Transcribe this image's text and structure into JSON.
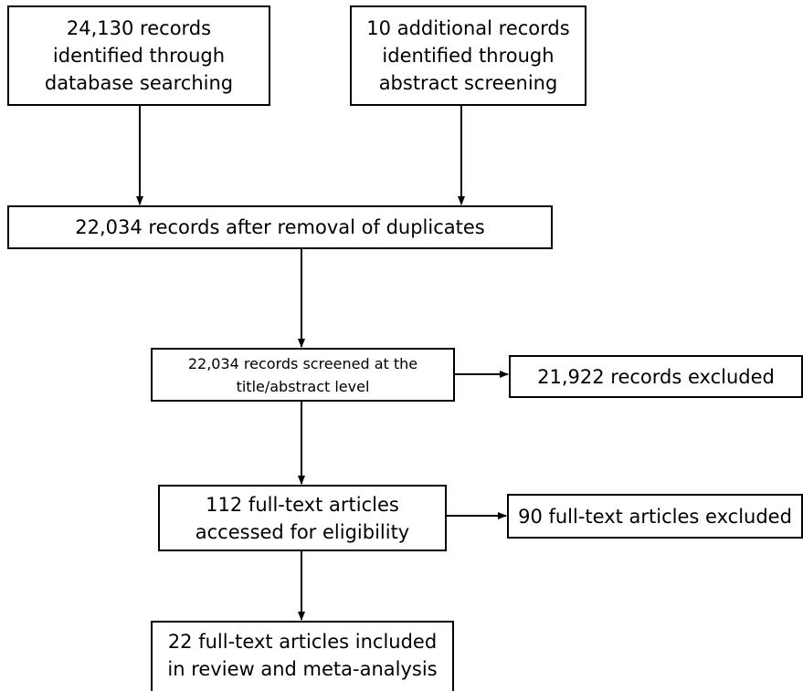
{
  "nodes": [
    {
      "lines": [
        "24,130 records",
        "identified through",
        "database searching"
      ]
    },
    {
      "lines": [
        "10 additional records",
        "identified through",
        "abstract screening"
      ]
    },
    {
      "lines": [
        "22,034 records after removal of duplicates"
      ]
    },
    {
      "lines": [
        "22,034 records screened at the",
        "title/abstract level"
      ]
    },
    {
      "lines": [
        "21,922 records excluded"
      ]
    },
    {
      "lines": [
        "112 full-text articles",
        "accessed for eligibility"
      ]
    },
    {
      "lines": [
        "90 full-text articles excluded"
      ]
    },
    {
      "lines": [
        "22 full-text articles included",
        "in review and meta-analysis"
      ]
    }
  ]
}
